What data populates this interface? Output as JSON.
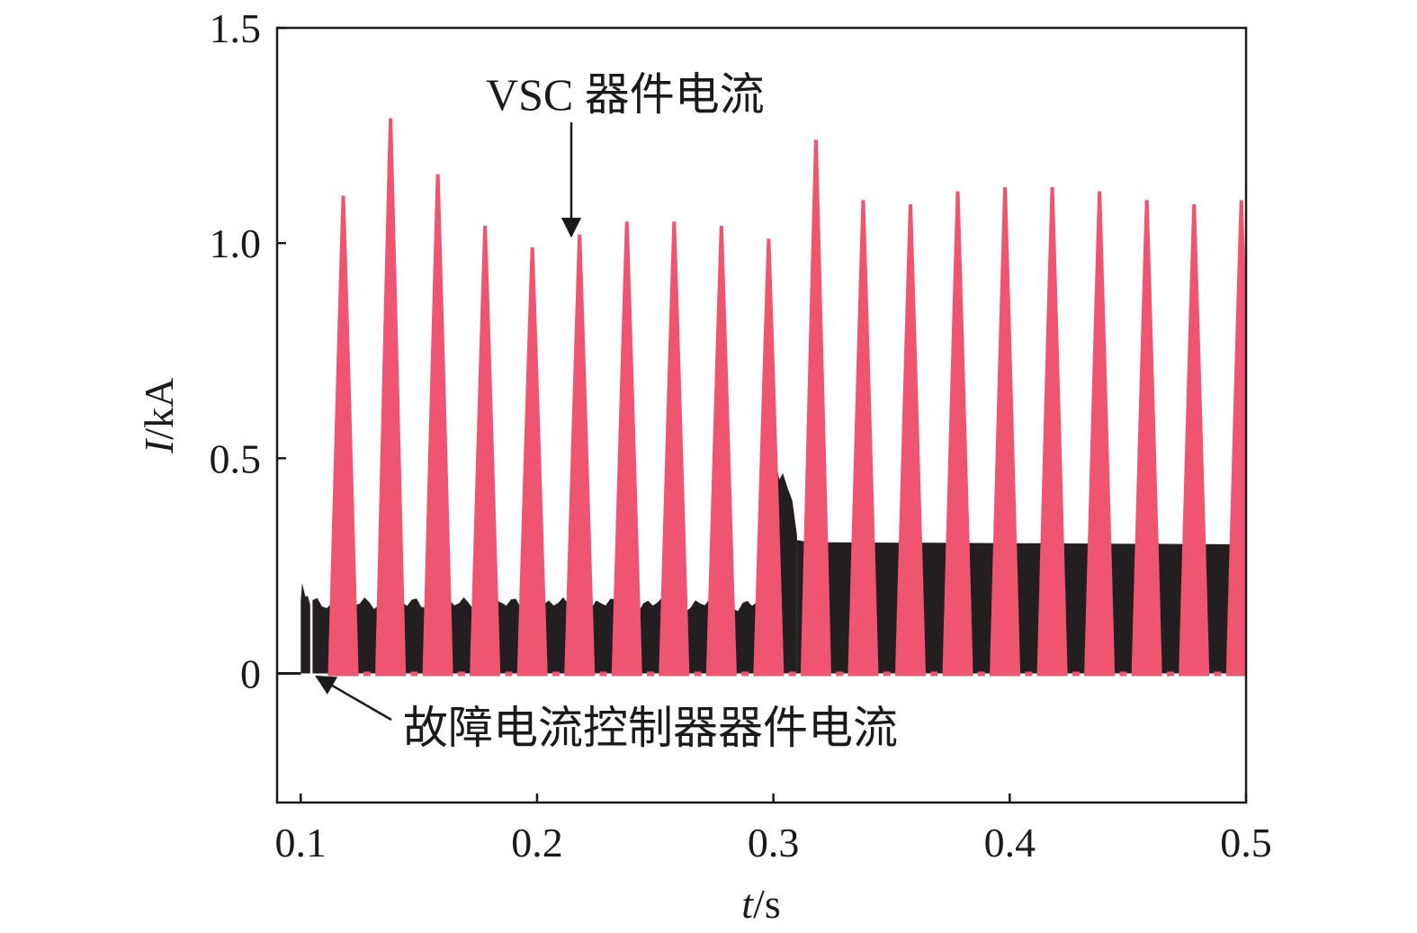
{
  "chart_data": {
    "type": "line",
    "xlabel": {
      "var": "t",
      "unit": "/s"
    },
    "ylabel": {
      "var": "I",
      "unit": "/kA"
    },
    "xlim": [
      0.09,
      0.5
    ],
    "ylim": [
      -0.3,
      1.5
    ],
    "xticks": [
      0.1,
      0.2,
      0.3,
      0.4,
      0.5
    ],
    "xtick_labels": [
      "0.1",
      "0.2",
      "0.3",
      "0.4",
      "0.5"
    ],
    "yticks": [
      0,
      0.5,
      1.0,
      1.5
    ],
    "ytick_labels": [
      "0",
      "0.5",
      "1.0",
      "1.5"
    ],
    "grid": false,
    "series": [
      {
        "name": "故障电流控制器器件电流",
        "color": "#231f20",
        "pre_fault_value": 0,
        "fault_time": 0.1,
        "segments": [
          {
            "t_start": 0.1,
            "t_end": 0.102,
            "peak": 0.21
          },
          {
            "t_start": 0.102,
            "t_end": 0.3,
            "level": 0.16
          },
          {
            "t_start": 0.3,
            "t_end": 0.31,
            "peak": 0.49
          },
          {
            "t_start": 0.31,
            "t_end": 0.5,
            "level": 0.3
          }
        ]
      },
      {
        "name": "VSC 器件电流",
        "color": "#ef5470",
        "pulses": [
          {
            "t": 0.118,
            "peak": 1.11
          },
          {
            "t": 0.138,
            "peak": 1.29
          },
          {
            "t": 0.158,
            "peak": 1.16
          },
          {
            "t": 0.178,
            "peak": 1.04
          },
          {
            "t": 0.198,
            "peak": 0.99
          },
          {
            "t": 0.218,
            "peak": 1.02
          },
          {
            "t": 0.238,
            "peak": 1.05
          },
          {
            "t": 0.258,
            "peak": 1.05
          },
          {
            "t": 0.278,
            "peak": 1.04
          },
          {
            "t": 0.298,
            "peak": 1.01
          },
          {
            "t": 0.318,
            "peak": 1.24
          },
          {
            "t": 0.338,
            "peak": 1.1
          },
          {
            "t": 0.358,
            "peak": 1.09
          },
          {
            "t": 0.378,
            "peak": 1.12
          },
          {
            "t": 0.398,
            "peak": 1.13
          },
          {
            "t": 0.418,
            "peak": 1.13
          },
          {
            "t": 0.438,
            "peak": 1.12
          },
          {
            "t": 0.458,
            "peak": 1.1
          },
          {
            "t": 0.478,
            "peak": 1.09
          },
          {
            "t": 0.498,
            "peak": 1.1
          }
        ]
      }
    ],
    "annotations": [
      {
        "text": "VSC 器件电流",
        "points_to": {
          "x": 0.216,
          "y": 1.02
        }
      },
      {
        "text": "故障电流控制器器件电流",
        "points_to": {
          "x": 0.107,
          "y": 0.0
        }
      }
    ]
  }
}
